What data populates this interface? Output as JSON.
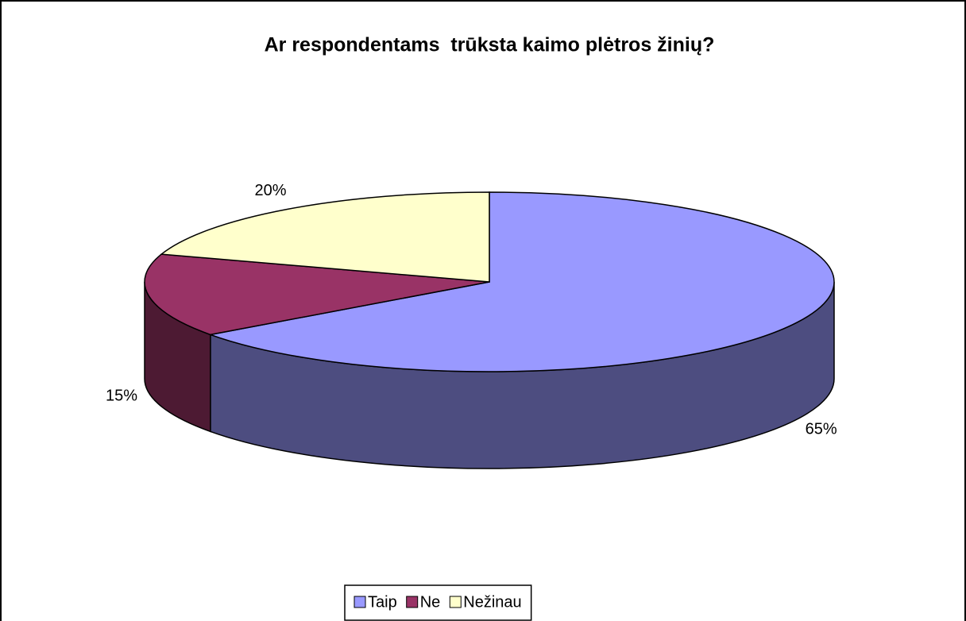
{
  "chart_data": {
    "type": "pie",
    "title": "Ar respondentams  trūksta kaimo plėtros žinių?",
    "categories": [
      "Taip",
      "Ne",
      "Nežinau"
    ],
    "values": [
      65,
      15,
      20
    ],
    "value_labels": [
      "65%",
      "15%",
      "20%"
    ],
    "colors": [
      "#9999FF",
      "#993366",
      "#FFFFCC"
    ],
    "legend": "bottom"
  }
}
